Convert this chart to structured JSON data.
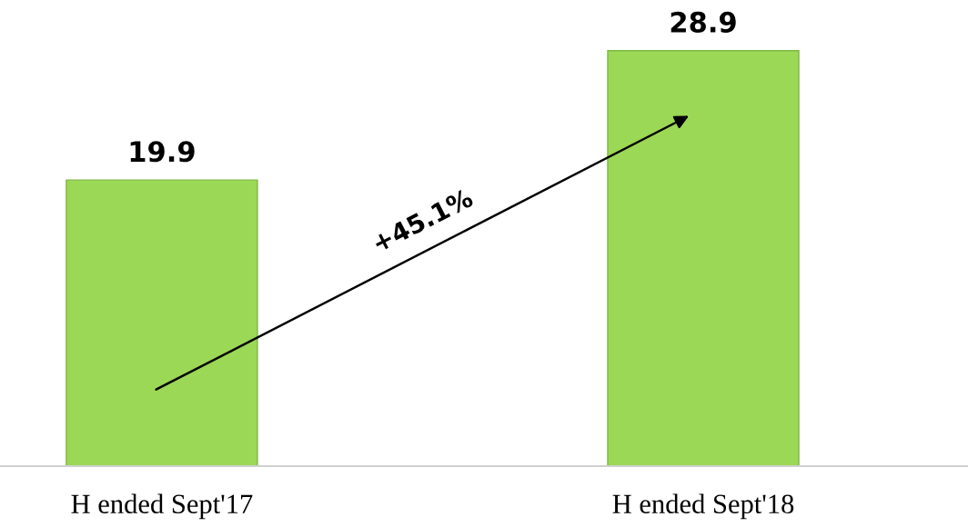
{
  "chart_data": {
    "type": "bar",
    "categories": [
      "H ended Sept'17",
      "H ended Sept'18"
    ],
    "values": [
      19.9,
      28.9
    ],
    "color": "#9bd855",
    "data_labels": true,
    "annotations": [
      "+45.1%"
    ],
    "grid": false,
    "legend": false
  }
}
